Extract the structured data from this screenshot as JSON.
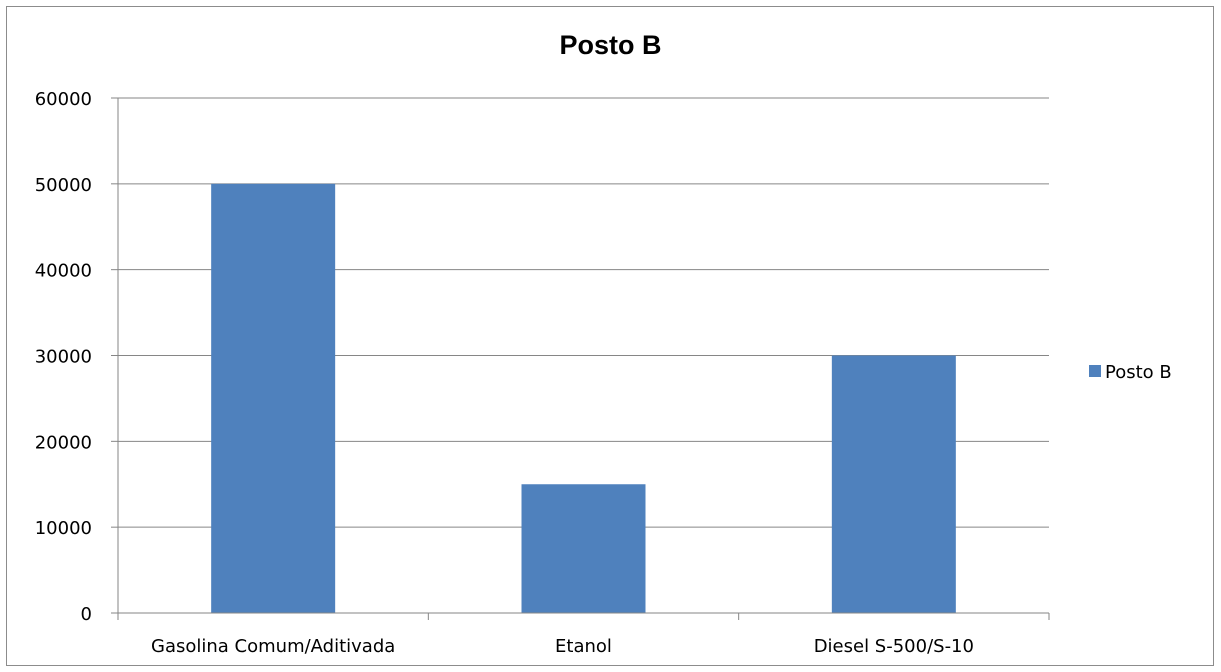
{
  "chart_data": {
    "type": "bar",
    "title": "Posto B",
    "categories": [
      "Gasolina Comum/Aditivada",
      "Etanol",
      "Diesel S-500/S-10"
    ],
    "series": [
      {
        "name": "Posto B",
        "values": [
          50000,
          15000,
          30000
        ],
        "color": "#4f81bd"
      }
    ],
    "xlabel": "",
    "ylabel": "",
    "ylim": [
      0,
      60000
    ],
    "yticks": [
      0,
      10000,
      20000,
      30000,
      40000,
      50000,
      60000
    ],
    "grid": true,
    "legend_position": "right"
  }
}
